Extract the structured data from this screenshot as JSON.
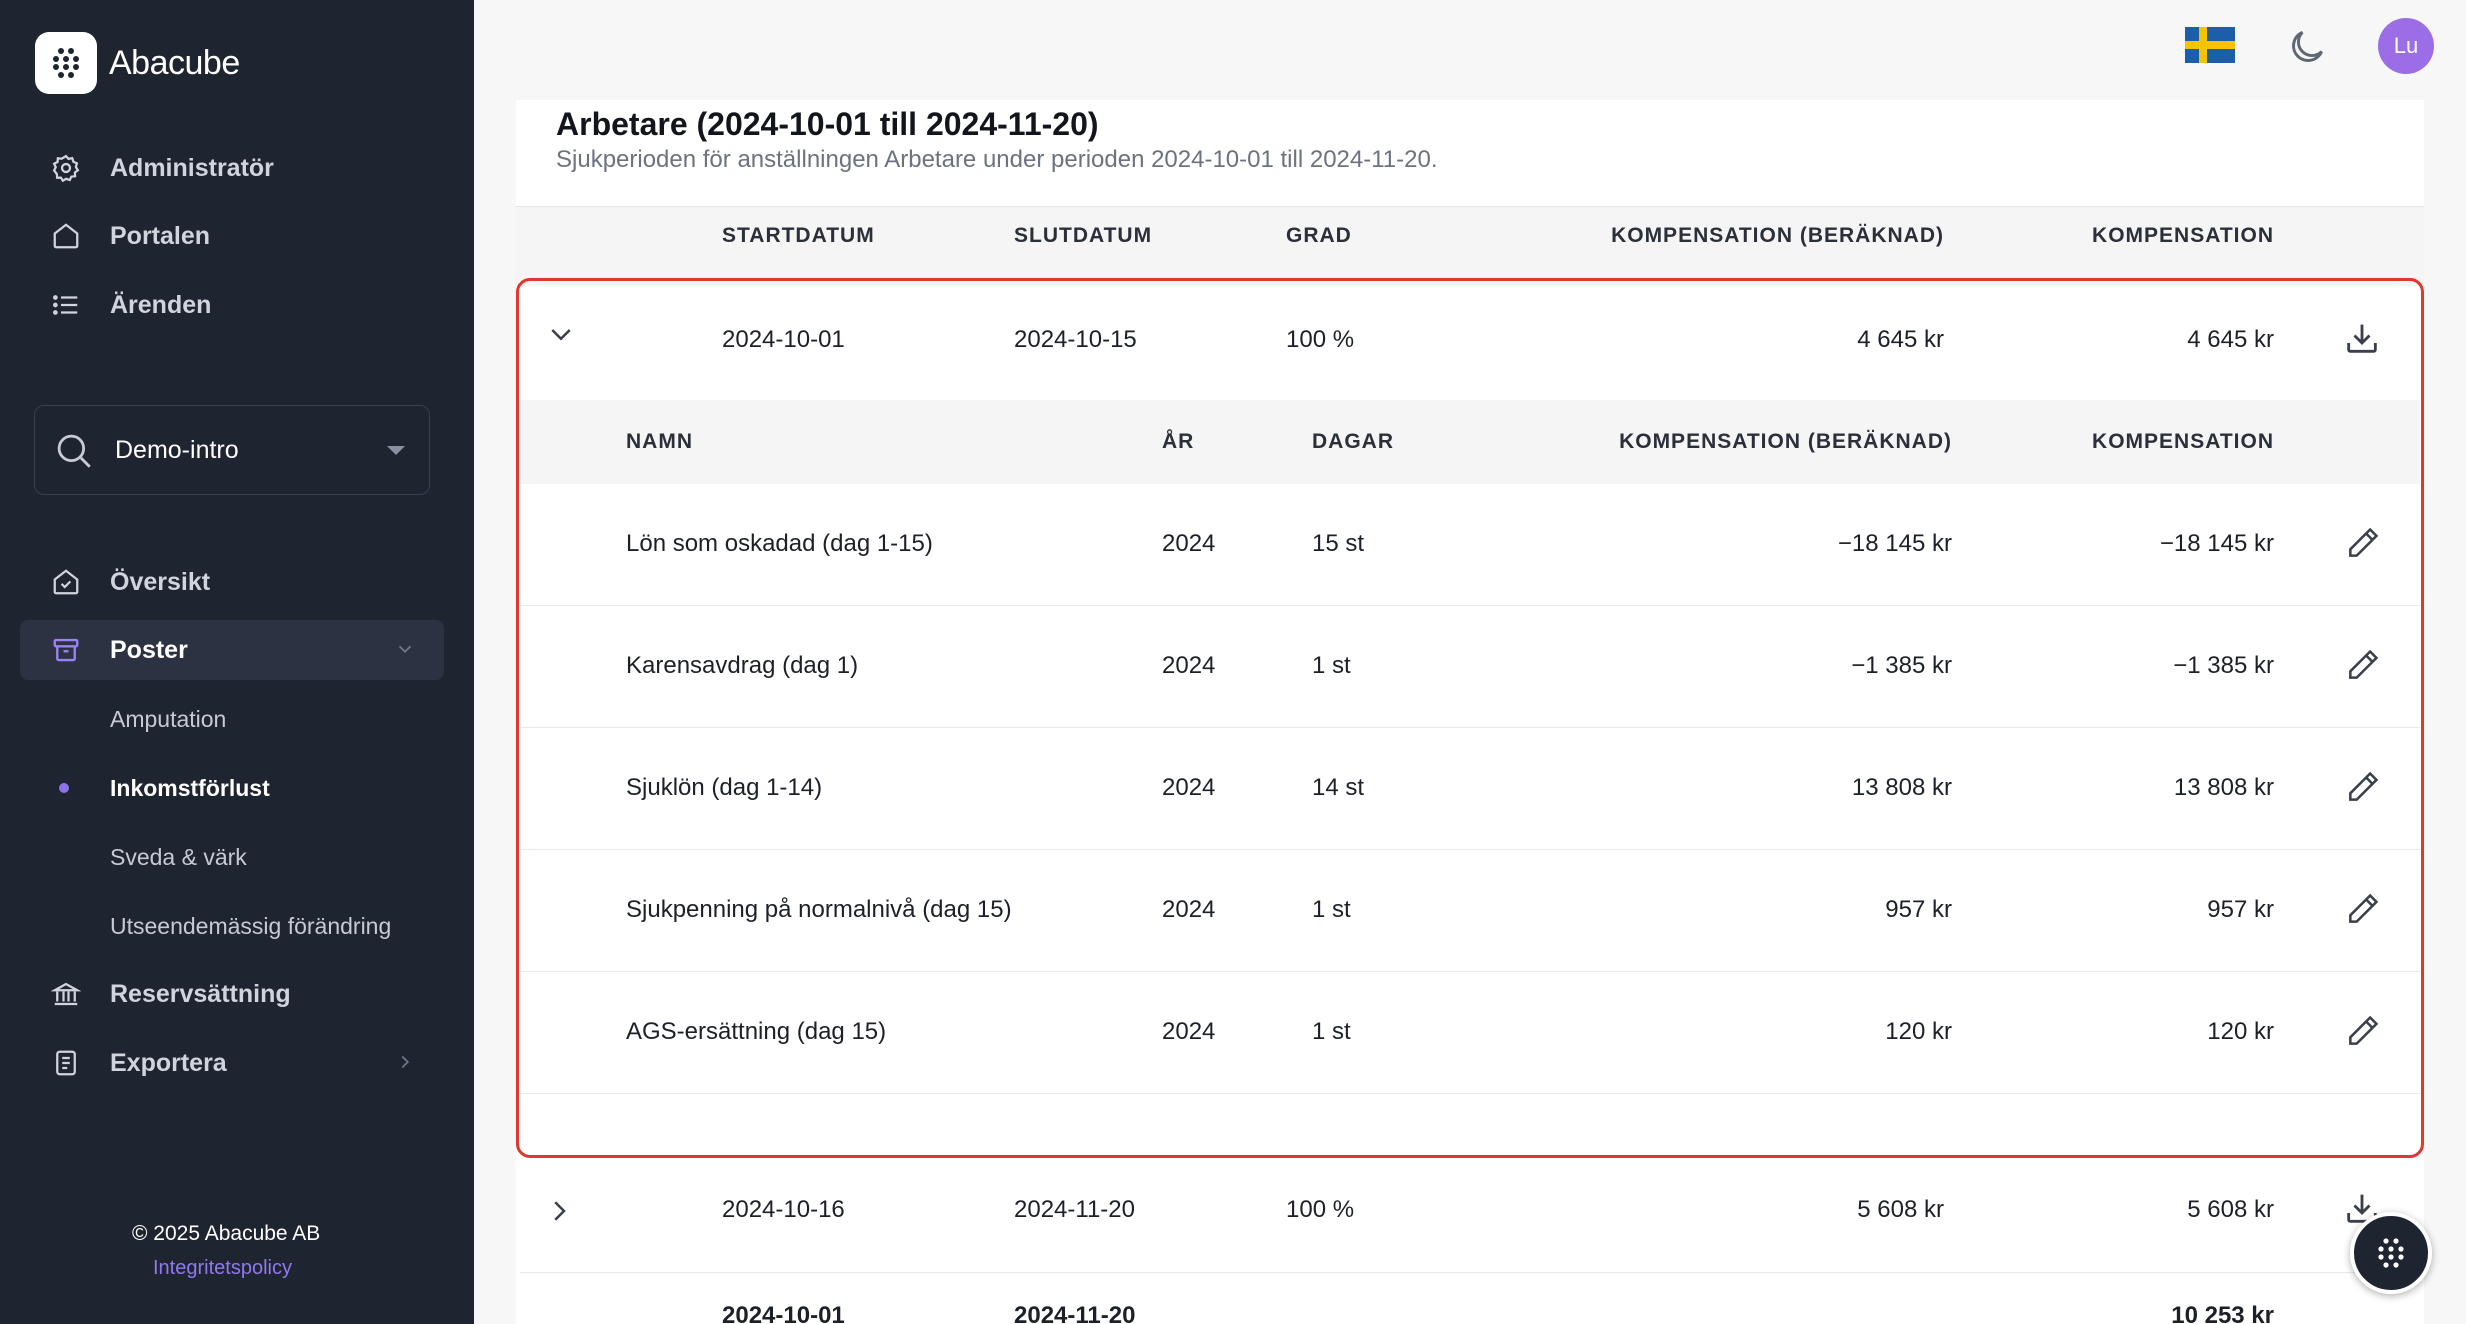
{
  "brand": {
    "name": "Abacube"
  },
  "sidebar": {
    "top_items": [
      {
        "label": "Administratör",
        "icon": "gear-icon"
      },
      {
        "label": "Portalen",
        "icon": "home-icon"
      },
      {
        "label": "Ärenden",
        "icon": "list-icon"
      }
    ],
    "case_selector": {
      "label": "Demo-intro",
      "icon": "search-icon"
    },
    "items": [
      {
        "label": "Översikt",
        "icon": "house-check-icon"
      },
      {
        "label": "Poster",
        "icon": "archive-icon"
      },
      {
        "label": "Reservsättning",
        "icon": "bank-icon"
      },
      {
        "label": "Exportera",
        "icon": "document-icon"
      }
    ],
    "sub_items": [
      {
        "label": "Amputation"
      },
      {
        "label": "Inkomstförlust"
      },
      {
        "label": "Sveda & värk"
      },
      {
        "label": "Utseendemässig förändring"
      }
    ],
    "footer": {
      "copyright": "© 2025 Abacube AB",
      "privacy": "Integritetspolicy"
    }
  },
  "topbar": {
    "avatar": "Lu",
    "flag": "sweden-flag-icon",
    "theme": "moon-icon"
  },
  "card": {
    "title": "Arbetare (2024-10-01 till 2024-11-20)",
    "subtitle": "Sjukperioden för anställningen Arbetare under perioden 2024-10-01 till 2024-11-20.",
    "columns": [
      "STARTDATUM",
      "SLUTDATUM",
      "GRAD",
      "KOMPENSATION (BERÄKNAD)",
      "KOMPENSATION"
    ],
    "periods": [
      {
        "start": "2024-10-01",
        "end": "2024-10-15",
        "grade": "100 %",
        "comp_calc": "4 645 kr",
        "comp": "4 645 kr"
      },
      {
        "start": "2024-10-16",
        "end": "2024-11-20",
        "grade": "100 %",
        "comp_calc": "5 608 kr",
        "comp": "5 608 kr"
      }
    ],
    "detail_columns": [
      "NAMN",
      "ÅR",
      "DAGAR",
      "KOMPENSATION (BERÄKNAD)",
      "KOMPENSATION"
    ],
    "details": [
      {
        "name": "Lön som oskadad (dag 1-15)",
        "year": "2024",
        "days": "15 st",
        "comp_calc": "−18 145 kr",
        "comp": "−18 145 kr"
      },
      {
        "name": "Karensavdrag (dag 1)",
        "year": "2024",
        "days": "1 st",
        "comp_calc": "−1 385 kr",
        "comp": "−1 385 kr"
      },
      {
        "name": "Sjuklön (dag 1-14)",
        "year": "2024",
        "days": "14 st",
        "comp_calc": "13 808 kr",
        "comp": "13 808 kr"
      },
      {
        "name": "Sjukpenning på normalnivå (dag 15)",
        "year": "2024",
        "days": "1 st",
        "comp_calc": "957 kr",
        "comp": "957 kr"
      },
      {
        "name": "AGS-ersättning (dag 15)",
        "year": "2024",
        "days": "1 st",
        "comp_calc": "120 kr",
        "comp": "120 kr"
      }
    ],
    "total": {
      "start": "2024-10-01",
      "end": "2024-11-20",
      "comp": "10 253 kr"
    }
  }
}
